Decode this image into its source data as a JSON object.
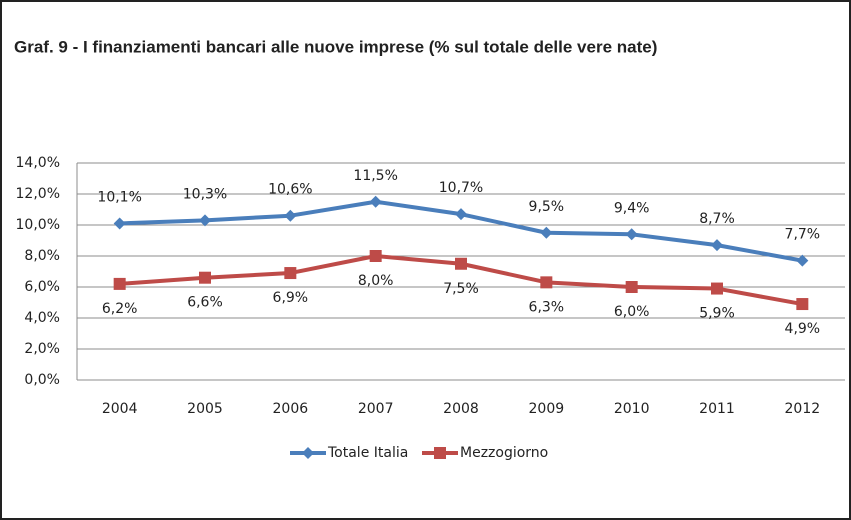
{
  "chart_data": {
    "type": "line",
    "title": "Graf. 9 - I finanziamenti bancari alle nuove imprese (% sul totale delle vere nate)",
    "categories": [
      "2004",
      "2005",
      "2006",
      "2007",
      "2008",
      "2009",
      "2010",
      "2011",
      "2012"
    ],
    "series": [
      {
        "name": "Totale Italia",
        "color": "#4a7ebb",
        "marker": "diamond",
        "label_position": "above",
        "values": [
          10.1,
          10.3,
          10.6,
          11.5,
          10.7,
          9.5,
          9.4,
          8.7,
          7.7
        ],
        "value_labels": [
          "10,1%",
          "10,3%",
          "10,6%",
          "11,5%",
          "10,7%",
          "9,5%",
          "9,4%",
          "8,7%",
          "7,7%"
        ]
      },
      {
        "name": "Mezzogiorno",
        "color": "#be4b48",
        "marker": "square",
        "label_position": "below",
        "values": [
          6.2,
          6.6,
          6.9,
          8.0,
          7.5,
          6.3,
          6.0,
          5.9,
          4.9
        ],
        "value_labels": [
          "6,2%",
          "6,6%",
          "6,9%",
          "8,0%",
          "7,5%",
          "6,3%",
          "6,0%",
          "5,9%",
          "4,9%"
        ]
      }
    ],
    "ylim": [
      0,
      14
    ],
    "yticks": [
      {
        "value": 0,
        "label": "0,0%"
      },
      {
        "value": 2,
        "label": "2,0%"
      },
      {
        "value": 4,
        "label": "4,0%"
      },
      {
        "value": 6,
        "label": "6,0%"
      },
      {
        "value": 8,
        "label": "8,0%"
      },
      {
        "value": 10,
        "label": "10,0%"
      },
      {
        "value": 12,
        "label": "12,0%"
      },
      {
        "value": 14,
        "label": "14,0%"
      }
    ],
    "grid": true,
    "legend": "bottom"
  }
}
